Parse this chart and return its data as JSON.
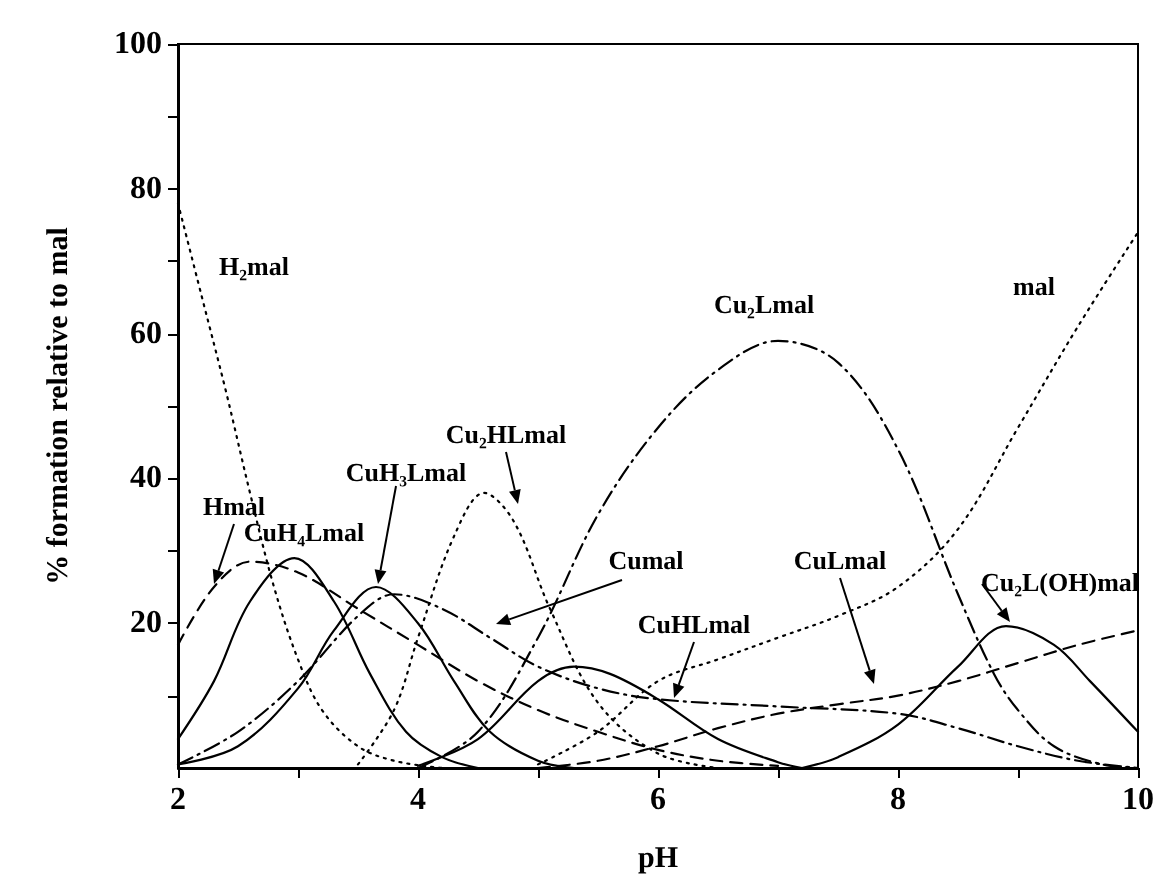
{
  "chart_data": {
    "type": "line",
    "xlabel": "pH",
    "ylabel": "% formation relative to mal",
    "xlim": [
      2,
      10
    ],
    "xticks": [
      2,
      {
        "value": 3,
        "label": null
      },
      4,
      {
        "value": 5,
        "label": null
      },
      6,
      {
        "value": 7,
        "label": null
      },
      8,
      {
        "value": 9,
        "label": null
      },
      10
    ],
    "ylim": [
      0,
      100
    ],
    "yticks": [
      {
        "value": 10,
        "label": null
      },
      20,
      {
        "value": 30,
        "label": null
      },
      40,
      {
        "value": 50,
        "label": null
      },
      60,
      {
        "value": 70,
        "label": null
      },
      80,
      {
        "value": 90,
        "label": null
      },
      100
    ],
    "grid": false,
    "legend": false,
    "marker": "none",
    "series": [
      {
        "name": "H₂mal",
        "color": "#000000",
        "line_style": "dotted",
        "x": [
          2,
          2.2,
          2.4,
          2.6,
          2.8,
          3.0,
          3.2,
          3.5,
          3.8,
          4.2
        ],
        "values": [
          78,
          65,
          52,
          38,
          25,
          15,
          8,
          3,
          1,
          0
        ]
      },
      {
        "name": "Hmal",
        "color": "#000000",
        "line_style": "dashed",
        "x": [
          2,
          2.3,
          2.6,
          3,
          3.5,
          4,
          4.5,
          5,
          5.5,
          6,
          6.5,
          7
        ],
        "values": [
          17,
          25,
          28.5,
          27,
          22,
          17,
          12,
          8,
          5,
          2.5,
          1,
          0.3
        ]
      },
      {
        "name": "CuH₄Lmal",
        "color": "#000000",
        "line_style": "solid",
        "x": [
          2,
          2.3,
          2.6,
          2.97,
          3.3,
          3.6,
          3.9,
          4.2,
          4.5
        ],
        "values": [
          4,
          12,
          23,
          29,
          23,
          13,
          5,
          1.5,
          0
        ]
      },
      {
        "name": "CuH₃Lmal",
        "color": "#000000",
        "line_style": "solid",
        "x": [
          2,
          2.5,
          3,
          3.3,
          3.65,
          4,
          4.3,
          4.6,
          5,
          5.3
        ],
        "values": [
          0.5,
          3,
          11,
          19,
          25,
          20,
          12,
          5,
          1,
          0
        ]
      },
      {
        "name": "Cu₂HLmal",
        "color": "#000000",
        "line_style": "dotted",
        "x": [
          3.5,
          3.8,
          4.0,
          4.3,
          4.55,
          4.8,
          5.1,
          5.5,
          6,
          6.5
        ],
        "values": [
          0.5,
          8,
          18,
          32,
          38,
          34,
          22,
          9,
          2,
          0
        ]
      },
      {
        "name": "Cu₂Lmal",
        "color": "#000000",
        "line_style": "dashdot",
        "x": [
          4,
          4.5,
          5,
          5.5,
          6,
          6.5,
          7,
          7.5,
          8,
          8.5,
          8.8,
          9,
          9.3,
          9.7,
          10
        ],
        "values": [
          0,
          5,
          18,
          35,
          47,
          55,
          59,
          56,
          44,
          24,
          13,
          8,
          3,
          0.5,
          0
        ]
      },
      {
        "name": "mal",
        "color": "#000000",
        "line_style": "dotted",
        "x": [
          5,
          5.5,
          6,
          6.5,
          7,
          7.5,
          8,
          8.5,
          9,
          9.5,
          10
        ],
        "values": [
          0.5,
          5,
          12,
          15,
          18,
          21,
          25,
          33,
          47,
          61,
          74
        ]
      },
      {
        "name": "CuHLmal",
        "color": "#000000",
        "line_style": "solid",
        "x": [
          4,
          4.5,
          5,
          5.3,
          5.6,
          6,
          6.5,
          7,
          7.2
        ],
        "values": [
          0.3,
          4,
          12,
          14,
          13,
          9.5,
          4,
          0.8,
          0
        ]
      },
      {
        "name": "Cu₂L(OH)mal",
        "color": "#000000",
        "line_style": "solid",
        "x": [
          7.2,
          7.5,
          8,
          8.5,
          8.9,
          9.3,
          9.6,
          10
        ],
        "values": [
          0,
          1.5,
          6,
          14,
          19.6,
          17,
          12,
          5
        ]
      },
      {
        "name": "CuLmal",
        "color": "#000000",
        "line_style": "dashed",
        "x": [
          5,
          5.5,
          6,
          6.5,
          7,
          7.5,
          8,
          8.5,
          9,
          9.5,
          10
        ],
        "values": [
          0,
          1,
          3,
          5.5,
          7.5,
          8.8,
          10,
          12,
          14.5,
          17,
          19
        ]
      },
      {
        "name": "Cumal",
        "color": "#000000",
        "line_style": "dashdot",
        "x": [
          2,
          2.5,
          3,
          3.5,
          3.8,
          4.2,
          4.6,
          5,
          5.5,
          6,
          7,
          8,
          8.5,
          9,
          9.5,
          10
        ],
        "values": [
          0.5,
          5,
          12,
          21,
          24,
          22,
          18,
          14,
          11,
          9.5,
          8.5,
          7.5,
          5.5,
          3,
          1,
          0
        ]
      }
    ]
  }
}
